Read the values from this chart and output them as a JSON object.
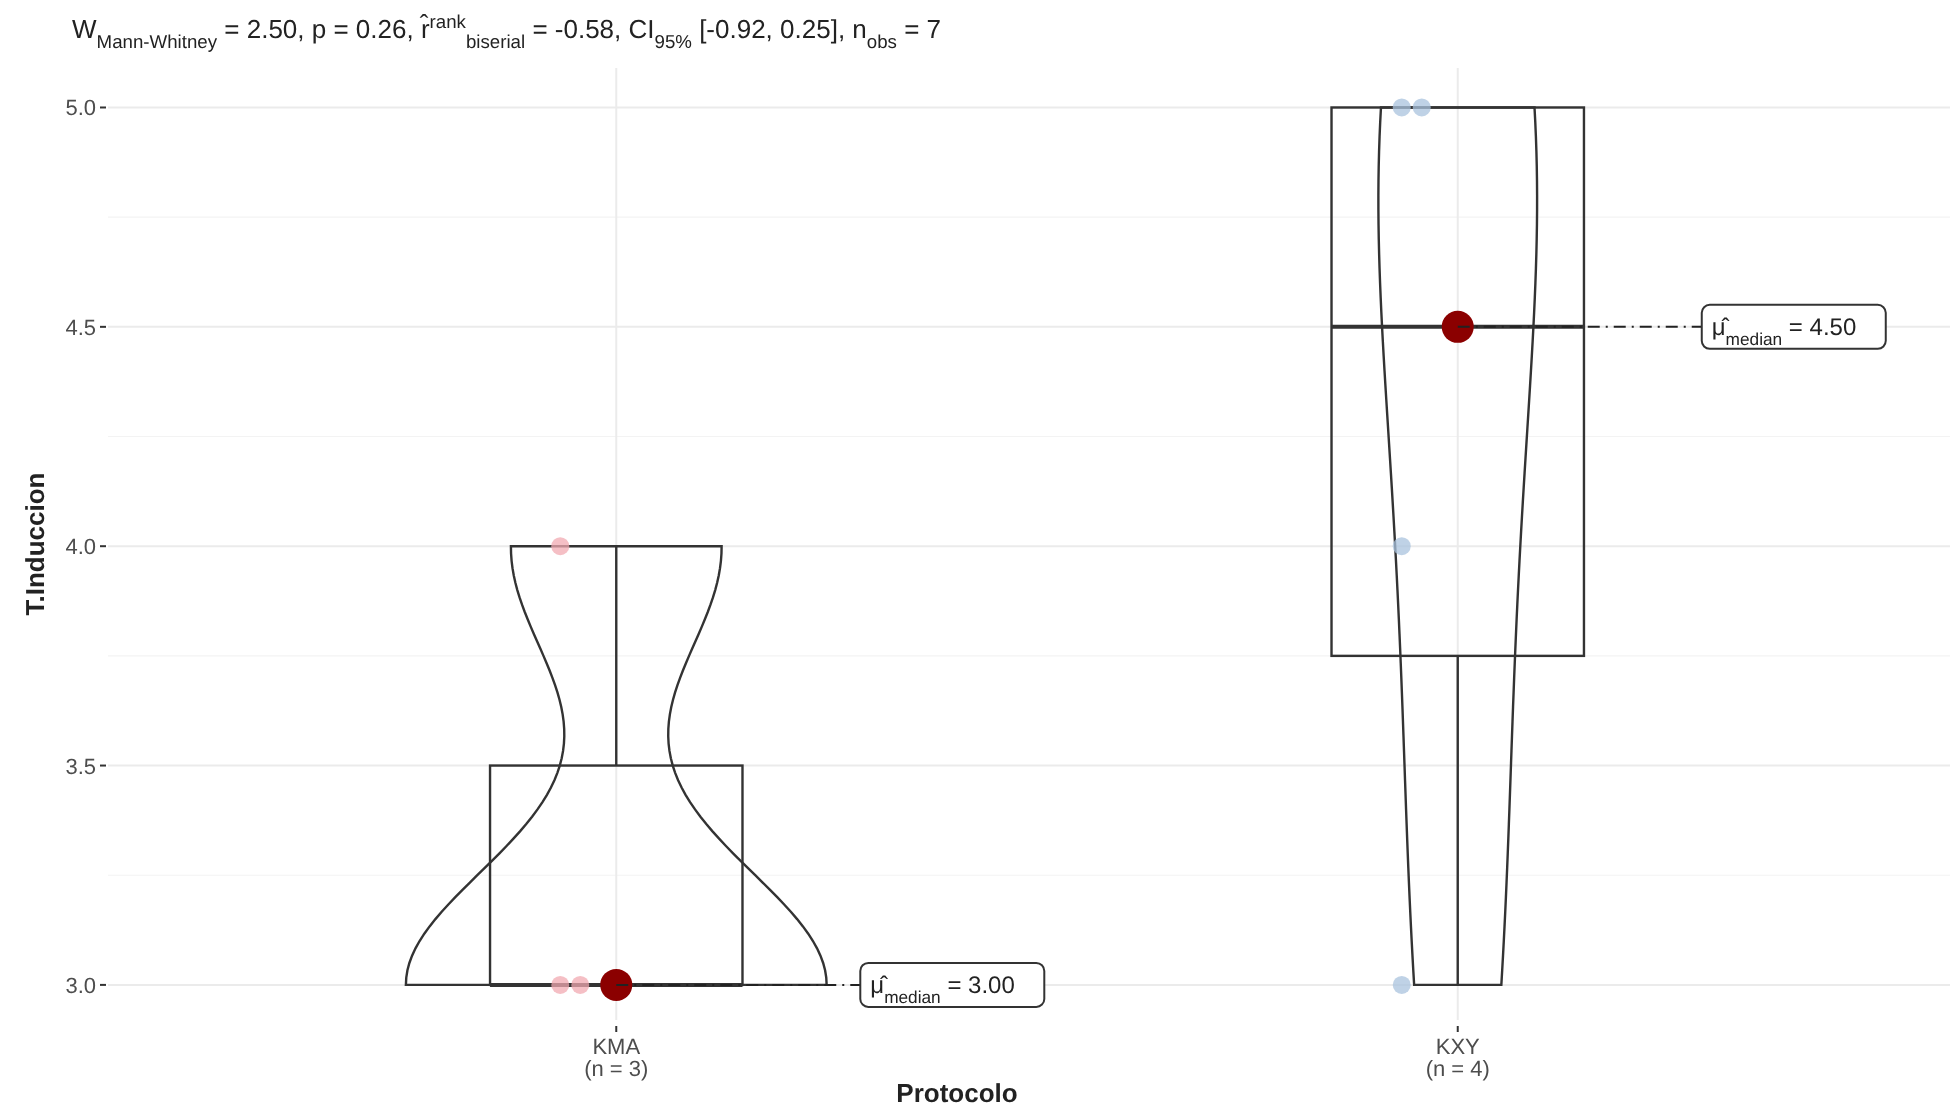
{
  "chart_data": {
    "type": "box",
    "title": "W$_{Mann-Whitney}$ = 2.50, p = 0.26, r̂$^{rank}$$_{biserial}$ = -0.58, CI$_{95%}$ [-0.92, 0.25], n$_{obs}$ = 7",
    "xlabel": "Protocolo",
    "ylabel": "T.Induccion",
    "categories": [
      "KMA\n(n = 3)",
      "KXY\n(n = 4)"
    ],
    "ylim": [
      2.92,
      5.09
    ],
    "yticks": [
      {
        "value": 3,
        "label": "3.0"
      },
      {
        "value": 3.5,
        "label": "3.5"
      },
      {
        "value": 4,
        "label": "4.0"
      },
      {
        "value": 4.5,
        "label": "4.5"
      },
      {
        "value": 5,
        "label": "5.0"
      }
    ],
    "grid": true,
    "marker": "circle",
    "series": [
      {
        "color": "#333333",
        "boxes": [
          {
            "low": 3,
            "q1": 3,
            "median": 3,
            "q3": 3.5,
            "high": 4
          },
          {
            "low": 3,
            "q1": 3.75,
            "median": 4.5,
            "q3": 5,
            "high": 5
          }
        ]
      },
      {
        "type": "scatter",
        "x": [
          "KMA\n(n = 3)",
          "KMA\n(n = 3)",
          "KMA\n(n = 3)",
          "KXY\n(n = 4)",
          "KXY\n(n = 4)",
          "KXY\n(n = 4)",
          "KXY\n(n = 4)"
        ],
        "values": [
          3,
          3,
          4,
          3,
          4,
          5,
          5
        ],
        "colors": [
          "#f2a9b2",
          "#f2a9b2",
          "#f2a9b2",
          "#a9c3de",
          "#a9c3de",
          "#a9c3de",
          "#a9c3de"
        ]
      },
      {
        "type": "scatter",
        "x": [
          "KMA\n(n = 3)",
          "KXY\n(n = 4)"
        ],
        "values": [
          3,
          4.5
        ],
        "color": "#8b0000"
      }
    ],
    "annotations": [
      {
        "text": "μ̂$_{median}$ = 3.00",
        "x": "KMA\n(n = 3)",
        "y": 3
      },
      {
        "text": "μ̂$_{median}$ = 4.50",
        "x": "KXY\n(n = 4)",
        "y": 4.5
      }
    ]
  }
}
